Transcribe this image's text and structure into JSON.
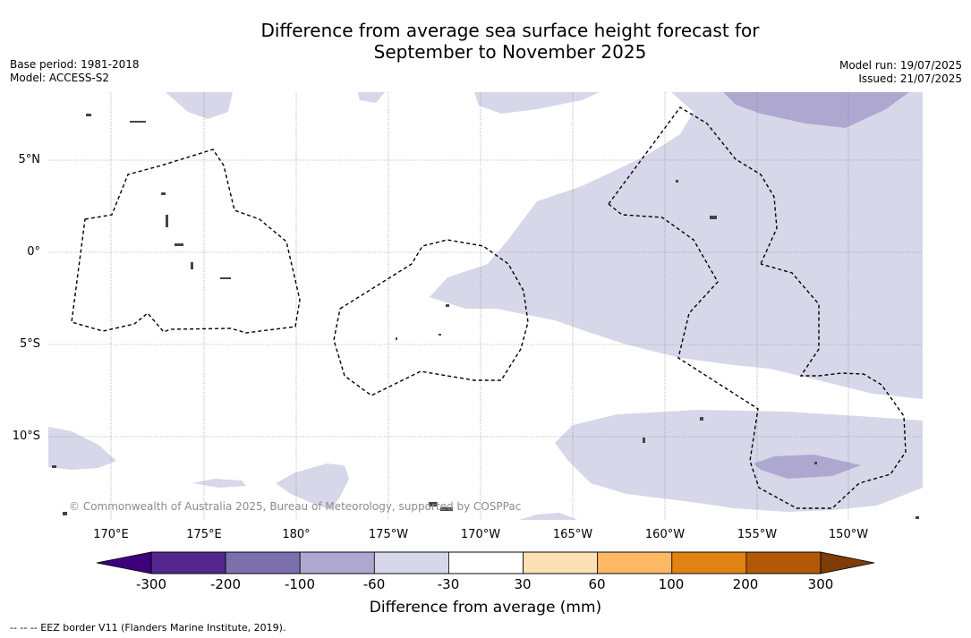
{
  "title": {
    "line1": "Difference from average sea surface height forecast for",
    "line2": "September to November 2025"
  },
  "meta": {
    "base_period": "Base period: 1981-2018",
    "model": "Model: ACCESS-S2",
    "model_run": "Model run: 19/07/2025",
    "issued": "Issued: 21/07/2025"
  },
  "map": {
    "lat_labels": [
      "5°N",
      "0°",
      "5°S",
      "10°S"
    ],
    "lon_labels": [
      "170°E",
      "175°E",
      "180°",
      "175°W",
      "170°W",
      "165°W",
      "160°W",
      "155°W",
      "150°W"
    ],
    "copyright": "© Commonwealth of Australia 2025, Bureau of Meteorology, supported by COSPPac",
    "land_color": "#555555",
    "ocean_color": "#ffffff"
  },
  "colorbar": {
    "label": "Difference from average (mm)",
    "ticks": [
      "-300",
      "-200",
      "-100",
      "-60",
      "-30",
      "30",
      "60",
      "100",
      "200",
      "300"
    ],
    "colors": [
      "#54278f",
      "#7b70ac",
      "#aea8d1",
      "#d7d7ea",
      "#ffffff",
      "#fee0b6",
      "#fdb863",
      "#e08214",
      "#b35806"
    ],
    "under_color": "#3f007d",
    "over_color": "#7f3b08"
  },
  "footnote": "-- -- -- EEZ border V11 (Flanders Marine Institute, 2019)."
}
